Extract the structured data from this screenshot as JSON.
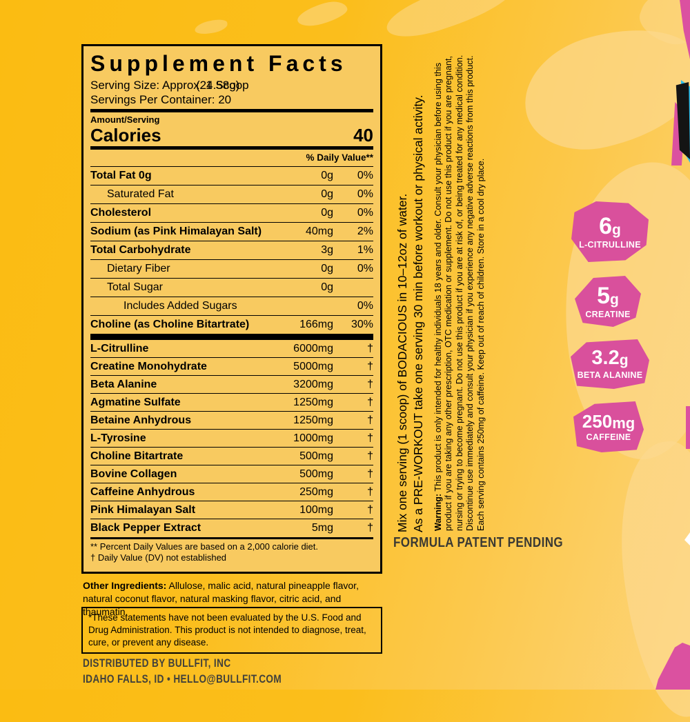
{
  "panel": {
    "title": "Supplement Facts",
    "serving_size_base": "Serving Size: Approx. 1 Scoop",
    "serving_size_overlay": "(24.58g)",
    "servings_per_container": "Servings Per Container: 20",
    "amount_per_serving_label": "Amount/Serving",
    "calories_label": "Calories",
    "calories_value": "40",
    "daily_value_header": "% Daily Value**",
    "nutrient_rows": [
      {
        "label": "Total Fat 0g",
        "bold": true,
        "indent": 0,
        "amount": "0g",
        "dv": "0%"
      },
      {
        "label": "Saturated Fat",
        "bold": false,
        "indent": 1,
        "amount": "0g",
        "dv": "0%"
      },
      {
        "label": "Cholesterol",
        "bold": true,
        "indent": 0,
        "amount": "0g",
        "dv": "0%"
      },
      {
        "label": "Sodium (as Pink Himalayan Salt)",
        "bold": true,
        "indent": 0,
        "amount": "40mg",
        "dv": "2%"
      },
      {
        "label": "Total Carbohydrate",
        "bold": true,
        "indent": 0,
        "amount": "3g",
        "dv": "1%"
      },
      {
        "label": "Dietary Fiber",
        "bold": false,
        "indent": 1,
        "amount": "0g",
        "dv": "0%"
      },
      {
        "label": "Total Sugar",
        "bold": false,
        "indent": 1,
        "amount": "0g",
        "dv": ""
      },
      {
        "label": "Includes Added Sugars",
        "bold": false,
        "indent": 2,
        "amount": "",
        "dv": "0%"
      },
      {
        "label": "Choline (as Choline Bitartrate)",
        "bold": true,
        "indent": 0,
        "amount": "166mg",
        "dv": "30%"
      }
    ],
    "active_rows": [
      {
        "label": "L-Citrulline",
        "amount": "6000mg",
        "dv": "†"
      },
      {
        "label": "Creatine Monohydrate",
        "amount": "5000mg",
        "dv": "†"
      },
      {
        "label": "Beta Alanine",
        "amount": "3200mg",
        "dv": "†"
      },
      {
        "label": "Agmatine Sulfate",
        "amount": "1250mg",
        "dv": "†"
      },
      {
        "label": "Betaine Anhydrous",
        "amount": "1250mg",
        "dv": "†"
      },
      {
        "label": "L-Tyrosine",
        "amount": "1000mg",
        "dv": "†"
      },
      {
        "label": "Choline Bitartrate",
        "amount": "500mg",
        "dv": "†"
      },
      {
        "label": "Bovine Collagen",
        "amount": "500mg",
        "dv": "†"
      },
      {
        "label": "Caffeine Anhydrous",
        "amount": "250mg",
        "dv": "†"
      },
      {
        "label": "Pink Himalayan Salt",
        "amount": "100mg",
        "dv": "†"
      },
      {
        "label": "Black Pepper Extract",
        "amount": "5mg",
        "dv": "†"
      }
    ],
    "footnote1": "** Percent Daily Values are based on a 2,000 calorie diet.",
    "footnote2": "† Daily Value (DV) not established"
  },
  "other_ingredients": {
    "label": "Other Ingredients:",
    "text": " Allulose, malic acid, natural pineapple flavor, natural coconut flavor, natural masking flavor, citric acid, and thaumatin."
  },
  "disclaimer_line1": "*These statements have not been evaluated by the U.S. Food and Drug Administration.",
  "disclaimer_line2": "This product is not intended to diagnose, treat, cure, or prevent any disease.",
  "distributor": {
    "line1": "DISTRIBUTED BY BULLFIT, INC",
    "line2": "IDAHO FALLS, ID • HELLO@BULLFIT.COM"
  },
  "directions": {
    "line1": "Mix one serving (1 scoop) of BODACIOUS in 10–12oz of water.",
    "line2": "As a PRE-WORKOUT take one serving 30 min before workout or physical activity."
  },
  "warning": {
    "label": "Warning:",
    "text": " This product is only intended for healthy individuals 18 years and older. Consult your physician before using this product if you are taking any other prescription, OTC medication or supplement. Do not use this product if you are pregnant, nursing or trying to become pregnant. Do not use this product if you are at risk of, or being treated for any medical condition. Discontinue use immediately and consult your physician if you experience any negative adverse reactions from this product. Each serving contains 250mg of caffeine. Keep out of reach of children. Store in a cool dry place."
  },
  "patent": "FORMULA PATENT PENDING",
  "badges": [
    {
      "amount": "6",
      "unit": "g",
      "label": "L-CITRULLINE"
    },
    {
      "amount": "5",
      "unit": "g",
      "label": "CREATINE"
    },
    {
      "amount": "3.2",
      "unit": "g",
      "label": "BETA ALANINE"
    },
    {
      "amount": "250",
      "unit": "mg",
      "label": "CAFFEINE"
    }
  ],
  "colors": {
    "background_gold": "#FBBD16",
    "background_light": "#FDD47A",
    "panel_fill": "#F8CA60",
    "badge_pink": "#D9509C",
    "splash_cream": "#FCD98E",
    "accent_cyan": "#2BC0EF",
    "accent_black": "#141414",
    "footer_text": "#42413B"
  }
}
